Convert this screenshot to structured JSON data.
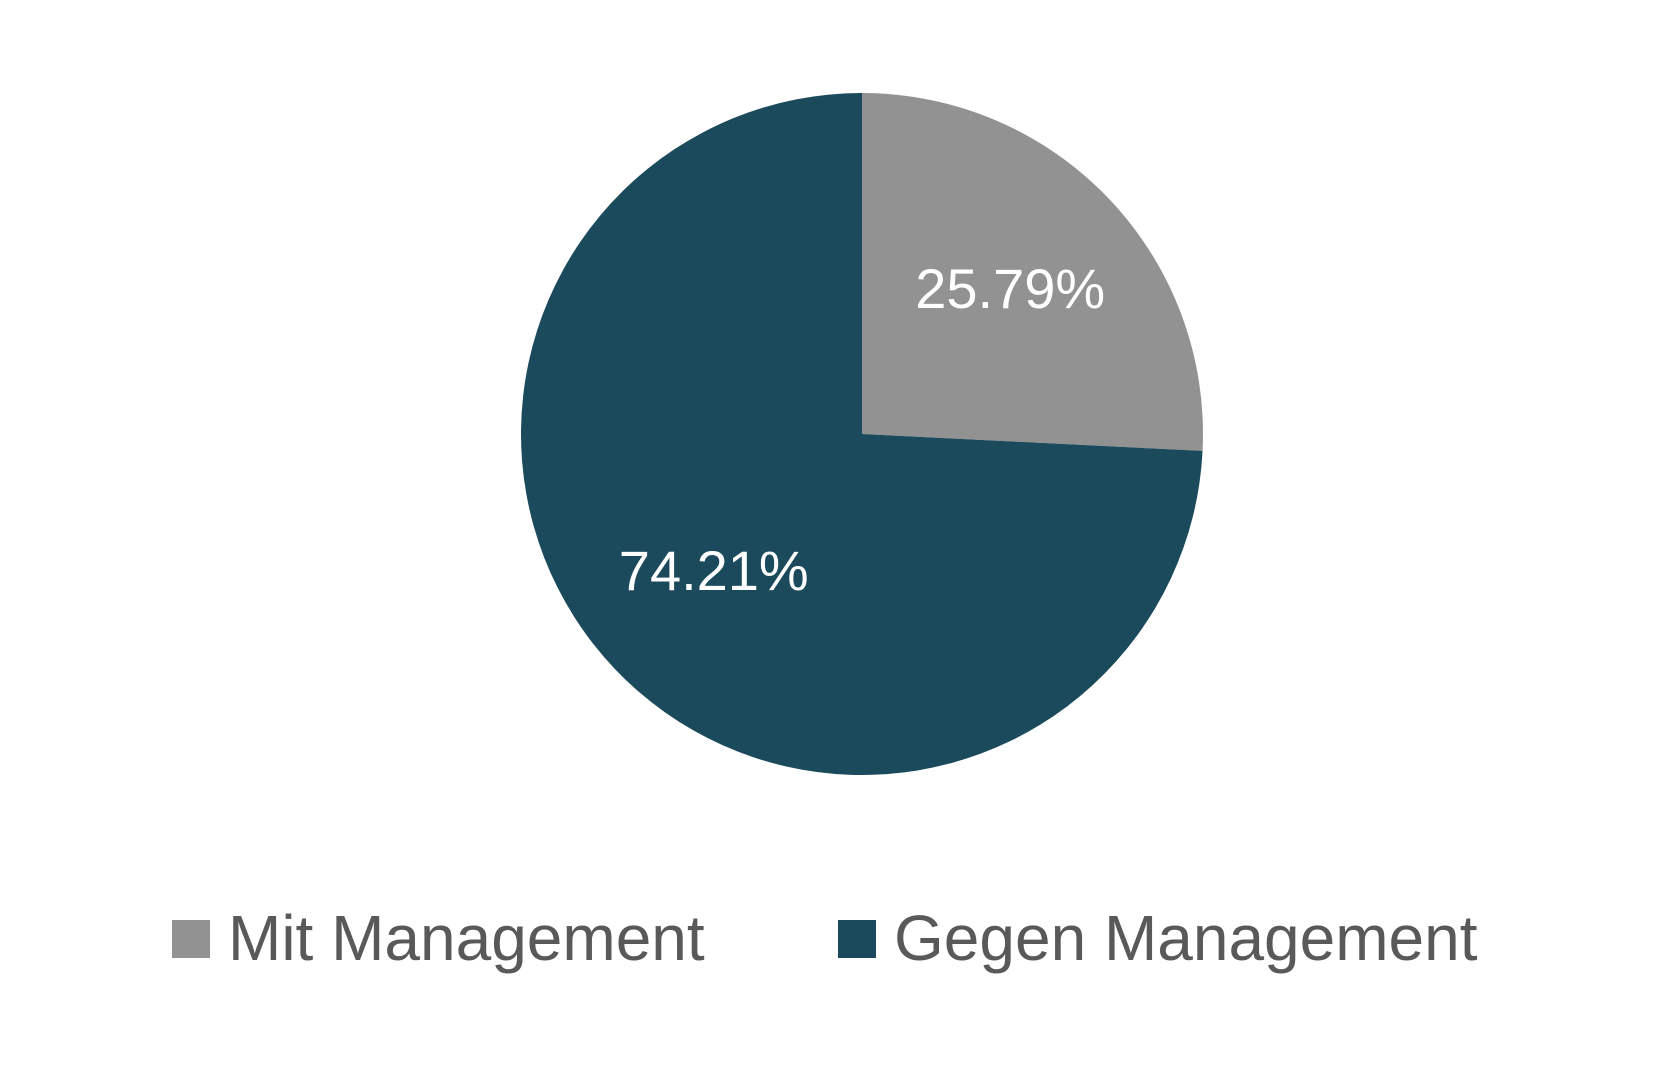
{
  "chart_data": {
    "type": "pie",
    "title": "",
    "start_angle": "12 o'clock",
    "direction": "clockwise",
    "slices": [
      {
        "name": "Mit Management",
        "value": 25.79,
        "label": "25.79%",
        "color": "#929292"
      },
      {
        "name": "Gegen Management",
        "value": 74.21,
        "label": "74.21%",
        "color": "#1B4A5C"
      }
    ],
    "legend": {
      "placement": "bottom",
      "entries": [
        "Mit Management",
        "Gegen Management"
      ]
    }
  }
}
